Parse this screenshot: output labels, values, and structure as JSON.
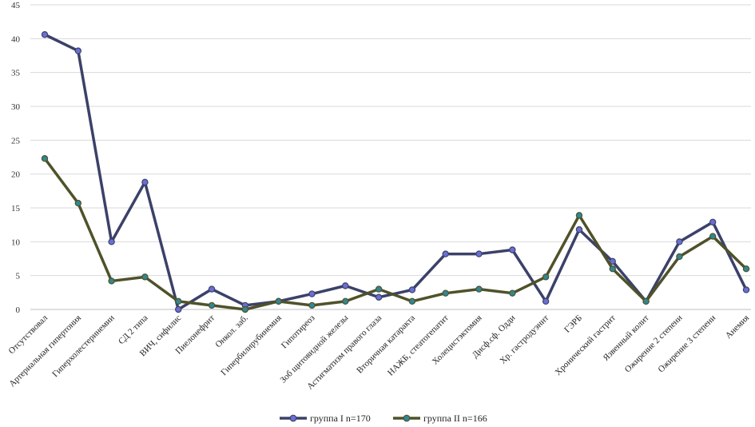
{
  "chart_data": {
    "type": "line",
    "title": "",
    "xlabel": "",
    "ylabel": "",
    "ylim": [
      0,
      45
    ],
    "y_ticks": [
      0,
      5,
      10,
      15,
      20,
      25,
      30,
      35,
      40,
      45
    ],
    "y_tick_labels": [
      "0",
      "5",
      "10",
      "15",
      "20",
      "25",
      "30",
      "35",
      "40",
      "45"
    ],
    "grid": "horizontal",
    "legend_position": "bottom-center",
    "categories": [
      "Отсутствовал",
      "Артериальная гипертония",
      "Гиперхолестеринемии",
      "СД 2 типа",
      "ВИЧ, сифилис",
      "Пиелонефрит",
      "Онкол. заб.",
      "Гипербилирубинемия",
      "Гипотиреоз",
      "Зоб щитовидной железы",
      "Астигматизм правого глаза",
      "Вторичная катаракта",
      "НАЖБ, стеатогепатит",
      "Холецистэктомия",
      "Дисф.сф. Одди",
      "Хр. гастродуэнит",
      "ГЭРБ",
      "Хронический гастрит",
      "Язвенный колит",
      "Ожирение 2 степени",
      "Ожирение 3 степени",
      "Анемия"
    ],
    "series": [
      {
        "name": "группа I  n=170",
        "color": "#3b4168",
        "marker_color": "#6b6fd4",
        "values": [
          40.6,
          38.2,
          10.0,
          18.8,
          0.0,
          3.0,
          0.6,
          1.2,
          2.3,
          3.5,
          1.8,
          2.9,
          8.2,
          8.2,
          8.8,
          1.2,
          11.8,
          7.1,
          1.2,
          10.0,
          12.9,
          2.9
        ]
      },
      {
        "name": "группа II  n=166",
        "color": "#4f5229",
        "marker_color": "#2f8796",
        "values": [
          22.3,
          15.7,
          4.2,
          4.8,
          1.2,
          0.6,
          0.0,
          1.2,
          0.6,
          1.2,
          3.0,
          1.2,
          2.4,
          3.0,
          2.4,
          4.8,
          13.9,
          6.0,
          1.2,
          7.8,
          10.8,
          6.0
        ]
      }
    ]
  }
}
